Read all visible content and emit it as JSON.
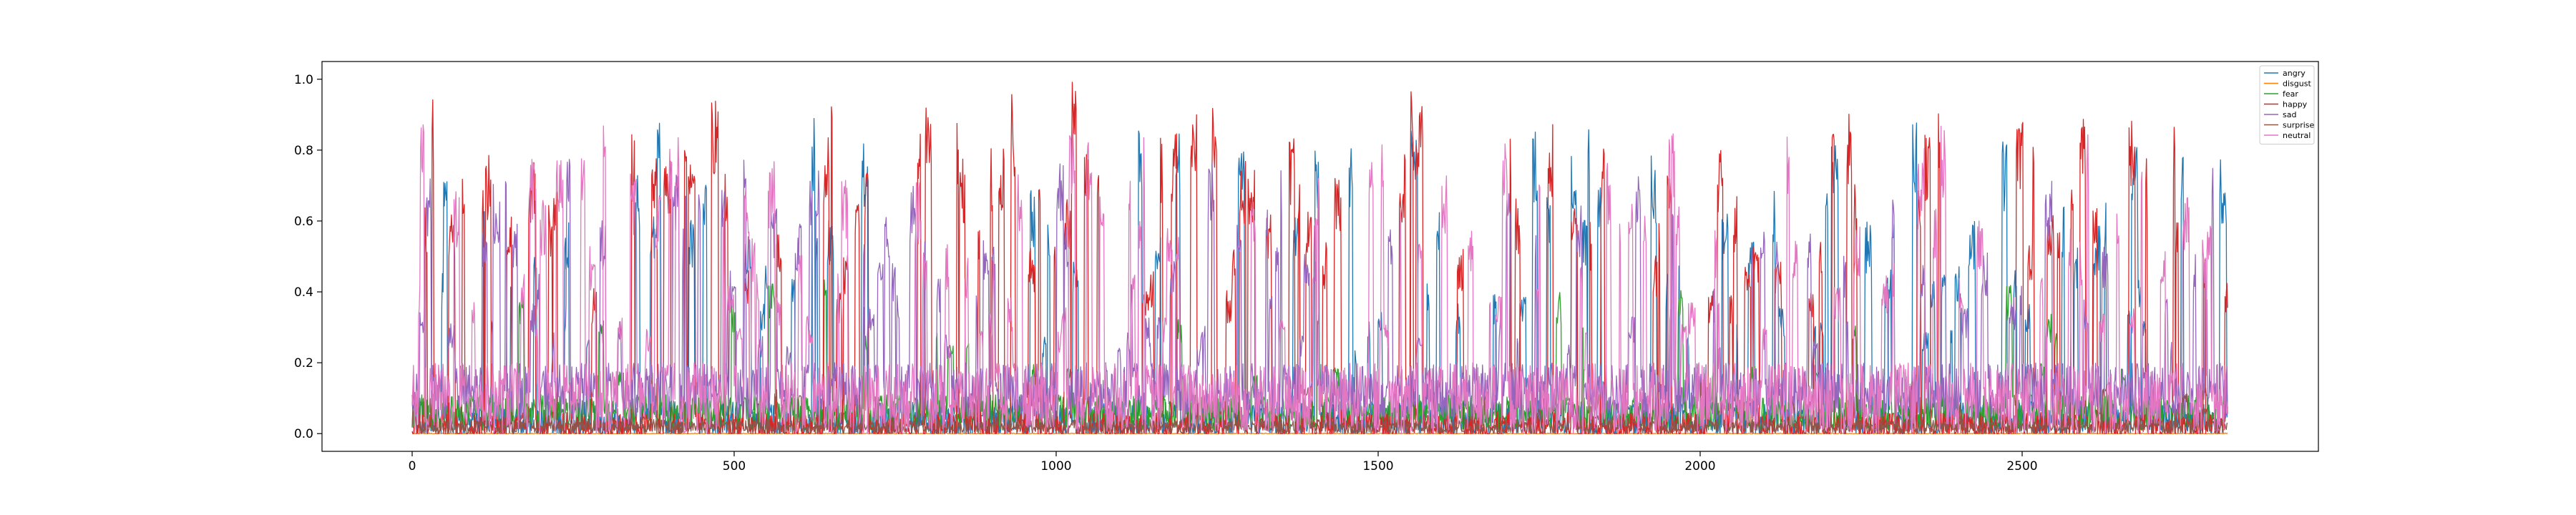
{
  "chart_data": {
    "type": "line",
    "title": "",
    "xlabel": "",
    "ylabel": "",
    "xlim": [
      -140,
      2960
    ],
    "ylim": [
      -0.05,
      1.05
    ],
    "x_ticks": [
      0,
      500,
      1000,
      1500,
      2000,
      2500
    ],
    "y_ticks": [
      0.0,
      0.2,
      0.4,
      0.6,
      0.8,
      1.0
    ],
    "x_tick_labels": [
      "0",
      "500",
      "1000",
      "1500",
      "2000",
      "2500"
    ],
    "y_tick_labels": [
      "0.0",
      "0.2",
      "0.4",
      "0.6",
      "0.8",
      "1.0"
    ],
    "grid": false,
    "legend_position": "top-right",
    "n_points": 2820,
    "series": [
      {
        "name": "angry",
        "color": "#1f77b4"
      },
      {
        "name": "disgust",
        "color": "#ff7f0e"
      },
      {
        "name": "fear",
        "color": "#2ca02c"
      },
      {
        "name": "happy",
        "color": "#d62728"
      },
      {
        "name": "sad",
        "color": "#9467bd"
      },
      {
        "name": "surprise",
        "color": "#8c564b"
      },
      {
        "name": "neutral",
        "color": "#e377c2"
      }
    ]
  }
}
